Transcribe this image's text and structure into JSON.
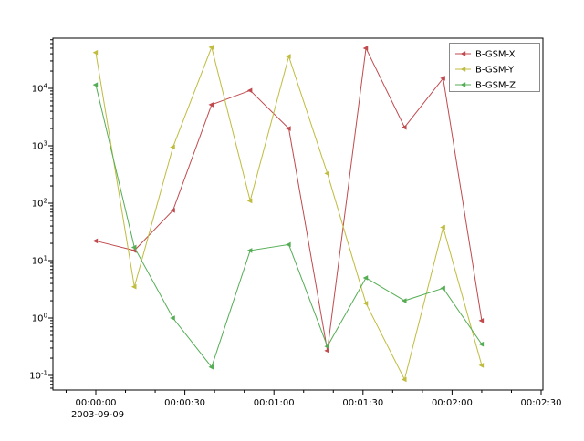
{
  "figure": {
    "background": "#ffffff",
    "date_label": "2003-09-09"
  },
  "chart_data": {
    "type": "line",
    "title": "",
    "xlabel": "",
    "ylabel": "",
    "y_scale": "log",
    "y_decades": [
      -1,
      0,
      1,
      2,
      3,
      4
    ],
    "y_exponent_labels": [
      "-1",
      "0",
      "1",
      "2",
      "3",
      "4"
    ],
    "x_tick_seconds": [
      0,
      30,
      60,
      90,
      120,
      150
    ],
    "x_tick_labels": [
      "00:00:00",
      "00:00:30",
      "00:01:00",
      "00:01:30",
      "00:02:00",
      "00:02:30"
    ],
    "x_minor_step_seconds": 10,
    "x_seconds": [
      0,
      13,
      26,
      39,
      52,
      65,
      78,
      91,
      104,
      117,
      130
    ],
    "series": [
      {
        "name": "B-GSM-X",
        "color": "#c04a4e",
        "marker": "triangle-left",
        "values": [
          22,
          15,
          75,
          5200,
          9200,
          2000,
          0.27,
          50000,
          2100,
          15000,
          0.9
        ]
      },
      {
        "name": "B-GSM-Y",
        "color": "#bfbc3f",
        "marker": "triangle-left",
        "values": [
          42000,
          3.5,
          950,
          52000,
          110,
          36000,
          330,
          1.8,
          0.085,
          38,
          0.15
        ]
      },
      {
        "name": "B-GSM-Z",
        "color": "#54ad54",
        "marker": "triangle-left",
        "values": [
          11500,
          17,
          1.0,
          0.14,
          15,
          19,
          0.32,
          5.0,
          2.0,
          3.3,
          0.35
        ]
      }
    ],
    "legend": {
      "position": "upper right",
      "labels": [
        "B-GSM-X",
        "B-GSM-Y",
        "B-GSM-Z"
      ]
    },
    "grid": false,
    "axis_range_note": {
      "xlim_seconds": [
        -14,
        151
      ],
      "ylim": [
        0.056,
        74000
      ]
    }
  }
}
